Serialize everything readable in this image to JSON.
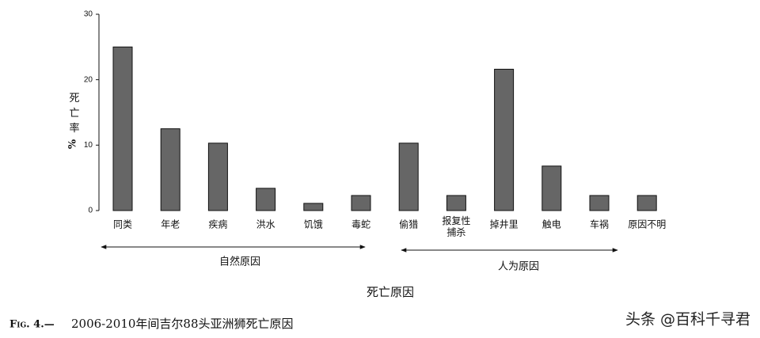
{
  "chart_data": {
    "type": "bar",
    "y_label": "死亡率",
    "y_unit": "%",
    "x_label": "死亡原因",
    "categories": [
      "同类",
      "年老",
      "疾病",
      "洪水",
      "饥饿",
      "毒蛇",
      "偷猎",
      "报复性\n捕杀",
      "掉井里",
      "触电",
      "车祸",
      "原因不明"
    ],
    "values": [
      25,
      12.5,
      10.3,
      3.4,
      1.1,
      2.3,
      10.3,
      2.3,
      21.6,
      6.8,
      2.3,
      2.3
    ],
    "color": "#666666",
    "ylim": [
      0,
      30
    ],
    "yticks": [
      0,
      10,
      20,
      30
    ],
    "groups": [
      "自然原因",
      "人为原因"
    ],
    "caption_prefix": "Fig. 4.—",
    "caption": "2006-2010年间吉尔88头亚洲狮死亡原因",
    "watermark": "头条 @百科千寻君"
  }
}
